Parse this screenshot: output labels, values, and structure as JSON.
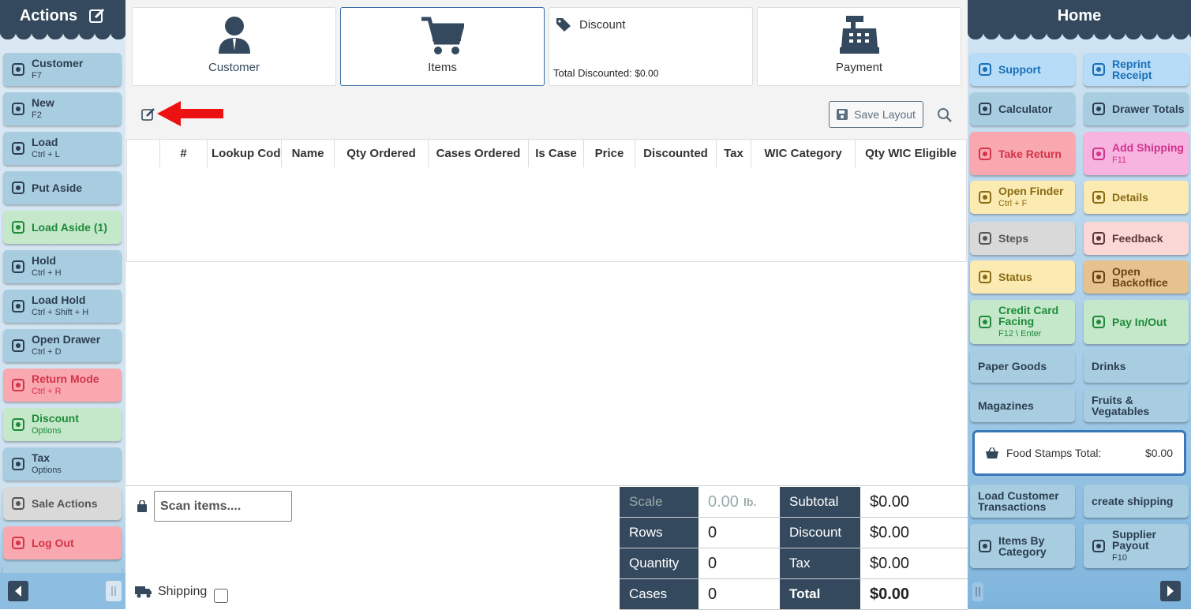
{
  "left_sidebar": {
    "title": "Actions",
    "buttons": [
      {
        "label": "Customer",
        "shortcut": "F7"
      },
      {
        "label": "New",
        "shortcut": "F2"
      },
      {
        "label": "Load",
        "shortcut": "Ctrl + L"
      },
      {
        "label": "Put Aside"
      },
      {
        "label": "Load Aside (1)"
      },
      {
        "label": "Hold",
        "shortcut": "Ctrl + H"
      },
      {
        "label": "Load Hold",
        "shortcut": "Ctrl + Shift + H"
      },
      {
        "label": "Open Drawer",
        "shortcut": "Ctrl + D"
      },
      {
        "label": "Return Mode",
        "shortcut": "Ctrl + R"
      },
      {
        "label": "Discount",
        "shortcut": "Options"
      },
      {
        "label": "Tax",
        "shortcut": "Options"
      },
      {
        "label": "Sale Actions"
      },
      {
        "label": "Log Out"
      }
    ]
  },
  "tabs": {
    "customer": "Customer",
    "items": "Items",
    "discount": {
      "label": "Discount",
      "total_label": "Total Discounted:",
      "total_value": "$0.00"
    },
    "payment": "Payment"
  },
  "toolbar": {
    "save_layout": "Save Layout"
  },
  "table": {
    "columns": [
      "#",
      "Lookup Cod",
      "Name",
      "Qty Ordered",
      "Cases Ordered",
      "Is Case",
      "Price",
      "Discounted",
      "Tax",
      "WIC Category",
      "Qty WIC Eligible"
    ]
  },
  "bottom": {
    "scan_placeholder": "Scan items....",
    "shipping_label": "Shipping",
    "totals": {
      "scale_label": "Scale",
      "scale_value": "0.00",
      "scale_unit": "lb.",
      "subtotal_label": "Subtotal",
      "subtotal_value": "$0.00",
      "rows_label": "Rows",
      "rows_value": 0,
      "discount_label": "Discount",
      "discount_value": "$0.00",
      "quantity_label": "Quantity",
      "quantity_value": 0,
      "tax_label": "Tax",
      "tax_value": "$0.00",
      "cases_label": "Cases",
      "cases_value": 0,
      "total_label": "Total",
      "total_value": "$0.00"
    }
  },
  "right_sidebar": {
    "title": "Home",
    "buttons": [
      {
        "label": "Support"
      },
      {
        "label": "Reprint Receipt"
      },
      {
        "label": "Calculator"
      },
      {
        "label": "Drawer Totals"
      },
      {
        "label": "Take Return"
      },
      {
        "label": "Add Shipping",
        "shortcut": "F11"
      },
      {
        "label": "Open Finder",
        "shortcut": "Ctrl + F"
      },
      {
        "label": "Details"
      },
      {
        "label": "Steps"
      },
      {
        "label": "Feedback"
      },
      {
        "label": "Status"
      },
      {
        "label": "Open Backoffice"
      },
      {
        "label": "Credit Card Facing",
        "shortcut": "F12 \\ Enter"
      },
      {
        "label": "Pay In/Out"
      },
      {
        "label": "Paper Goods"
      },
      {
        "label": "Drinks"
      },
      {
        "label": "Magazines"
      },
      {
        "label": "Fruits & Vegatables"
      },
      {
        "label": "Load Customer Transactions"
      },
      {
        "label": "create shipping"
      },
      {
        "label": "Items By Category"
      },
      {
        "label": "Supplier Payout",
        "shortcut": "F10"
      }
    ],
    "food_stamps": {
      "label": "Food Stamps Total:",
      "value": "$0.00"
    }
  }
}
